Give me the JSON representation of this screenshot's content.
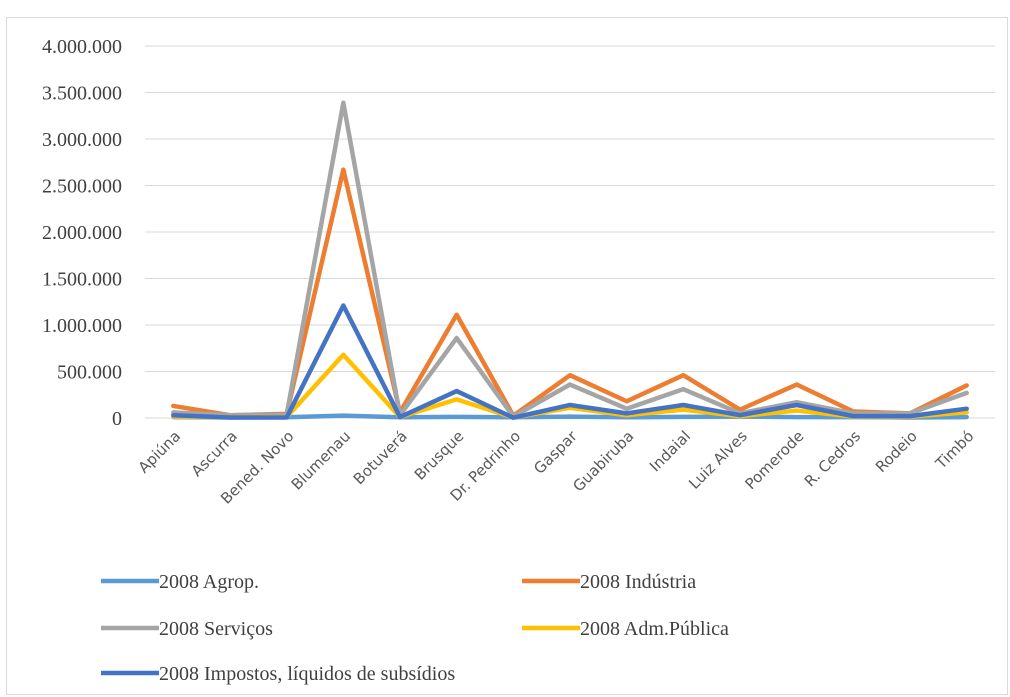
{
  "chart_data": {
    "type": "line",
    "title": "",
    "xlabel": "",
    "ylabel": "",
    "ylim": [
      0,
      4000000
    ],
    "y_ticks": [
      "0",
      "500.000",
      "1.000.000",
      "1.500.000",
      "2.000.000",
      "2.500.000",
      "3.000.000",
      "3.500.000",
      "4.000.000"
    ],
    "grid": "horizontal",
    "legend_position": "bottom",
    "categories": [
      "Apiúna",
      "Ascurra",
      "Bened. Novo",
      "Blumenau",
      "Botuverá",
      "Brusque",
      "Dr. Pedrinho",
      "Gaspar",
      "Guabiruba",
      "Indaial",
      "Luiz Alves",
      "Pomerode",
      "R. Cedros",
      "Rodeio",
      "Timbó"
    ],
    "series": [
      {
        "name": "2008 Agrop.",
        "color": "#5b9bd5",
        "values": [
          10000,
          5000,
          8000,
          25000,
          8000,
          12000,
          8000,
          15000,
          8000,
          12000,
          15000,
          10000,
          10000,
          6000,
          10000
        ]
      },
      {
        "name": "2008 Indústria",
        "color": "#ed7d31",
        "values": [
          130000,
          30000,
          45000,
          2670000,
          60000,
          1110000,
          25000,
          460000,
          180000,
          460000,
          90000,
          360000,
          70000,
          50000,
          350000
        ]
      },
      {
        "name": "2008 Serviços",
        "color": "#a5a5a5",
        "values": [
          60000,
          30000,
          35000,
          3390000,
          30000,
          860000,
          15000,
          360000,
          100000,
          310000,
          50000,
          170000,
          50000,
          50000,
          270000
        ]
      },
      {
        "name": "2008 Adm.Pública",
        "color": "#ffc000",
        "values": [
          15000,
          8000,
          10000,
          680000,
          10000,
          200000,
          5000,
          110000,
          30000,
          90000,
          20000,
          80000,
          15000,
          15000,
          60000
        ]
      },
      {
        "name": "2008 Impostos, líquidos de subsídios",
        "color": "#4472c4",
        "values": [
          30000,
          5000,
          5000,
          1210000,
          10000,
          290000,
          3000,
          140000,
          50000,
          140000,
          30000,
          140000,
          20000,
          20000,
          100000
        ]
      }
    ]
  }
}
